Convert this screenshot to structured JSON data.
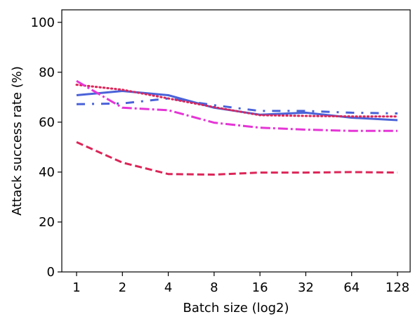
{
  "chart_data": {
    "type": "line",
    "title": "",
    "xlabel": "Batch size (log2)",
    "ylabel": "Attack success rate (%)",
    "x_scale": "log2",
    "x": [
      1,
      2,
      4,
      8,
      16,
      32,
      64,
      128
    ],
    "x_tick_labels": [
      "1",
      "2",
      "4",
      "8",
      "16",
      "32",
      "64",
      "128"
    ],
    "y_ticks": [
      0,
      20,
      40,
      60,
      80,
      100
    ],
    "y_tick_labels": [
      "0",
      "20",
      "40",
      "60",
      "80",
      "100"
    ],
    "xlim": [
      0.8,
      155
    ],
    "ylim": [
      0,
      105
    ],
    "grid": false,
    "legend": "none",
    "series": [
      {
        "color": "#4a62d8",
        "dash": "solid",
        "values": [
          70.8,
          72.5,
          70.8,
          65.8,
          63.0,
          63.8,
          61.8,
          60.8
        ]
      },
      {
        "color": "#4a62d8",
        "dash": "dashdot-wide",
        "values": [
          67.2,
          67.5,
          69.5,
          66.8,
          64.5,
          64.5,
          63.8,
          63.5
        ]
      },
      {
        "color": "#dc2558",
        "dash": "dotted",
        "values": [
          75.0,
          73.0,
          69.5,
          66.0,
          62.8,
          62.5,
          62.3,
          62.3
        ]
      },
      {
        "color": "#e535d6",
        "dash": "dashdot",
        "values": [
          76.5,
          65.8,
          64.8,
          59.8,
          57.8,
          57.0,
          56.5,
          56.5
        ]
      },
      {
        "color": "#dc2558",
        "dash": "dashed",
        "values": [
          52.0,
          43.8,
          39.2,
          39.0,
          39.8,
          39.8,
          40.0,
          39.8
        ]
      }
    ]
  }
}
